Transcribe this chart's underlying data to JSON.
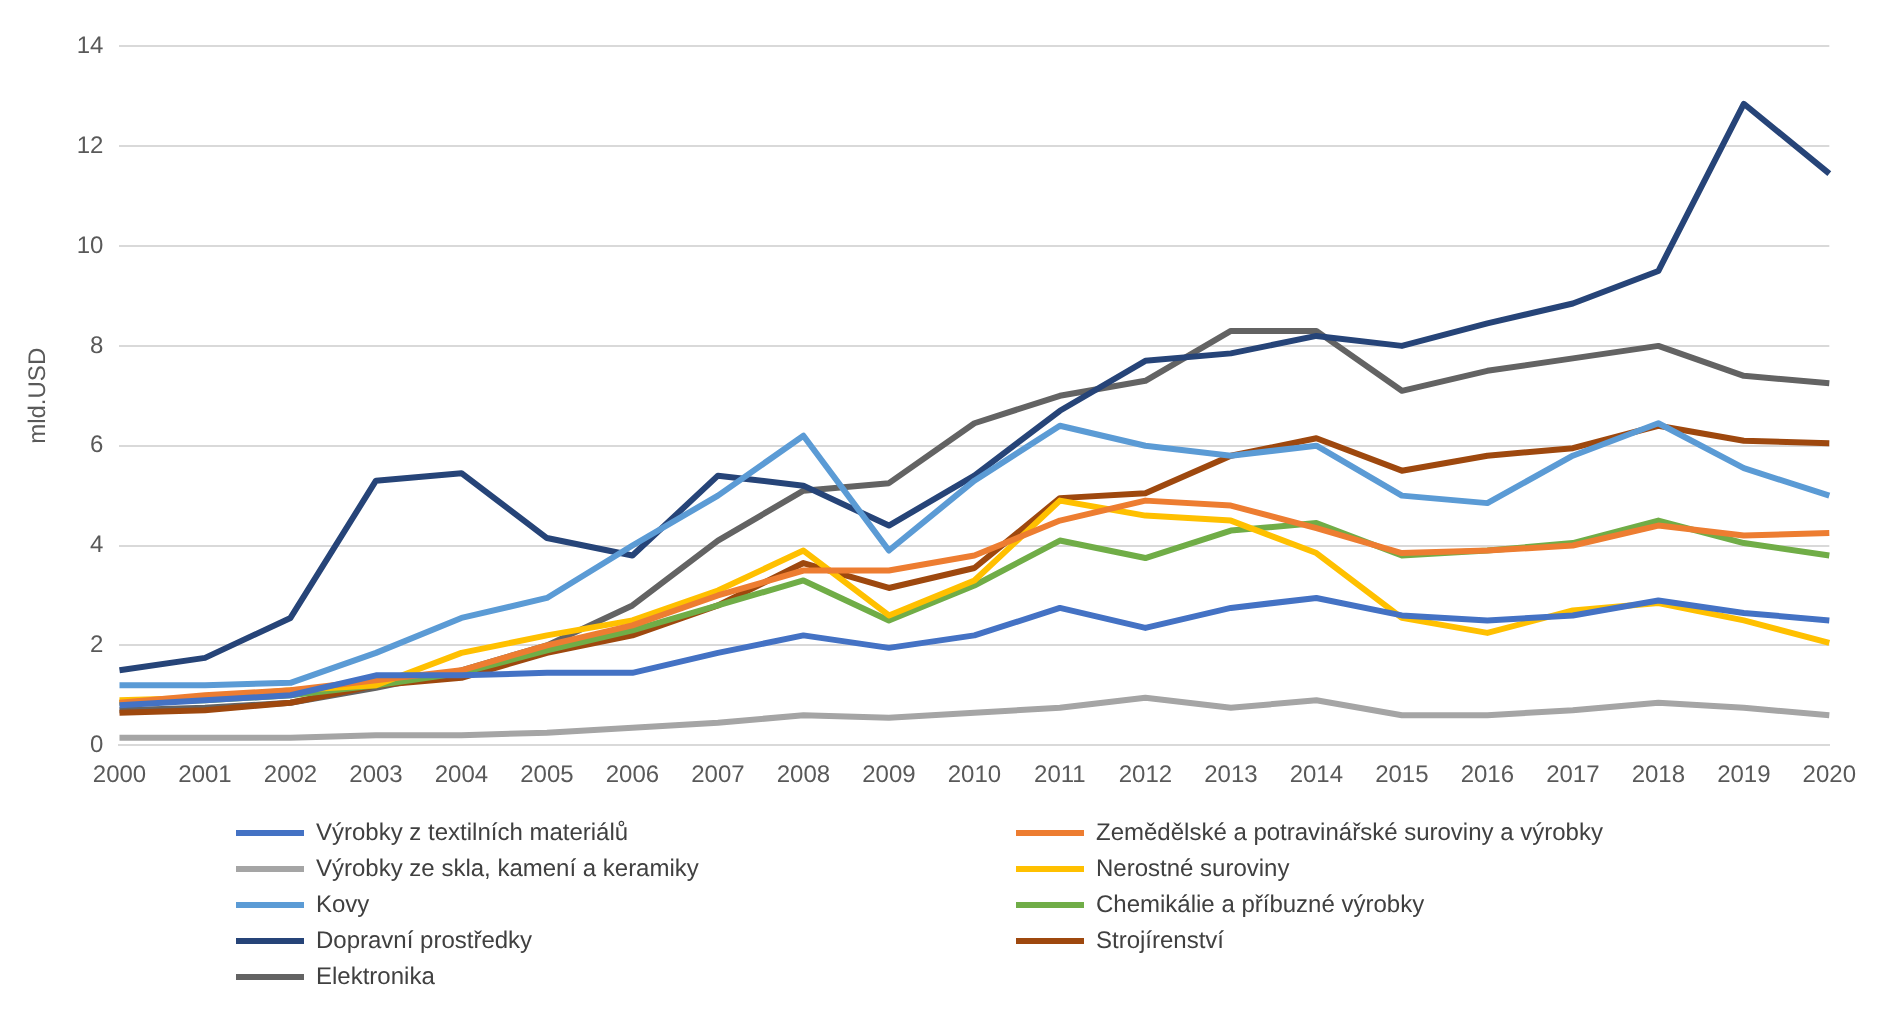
{
  "chart_data": {
    "type": "line",
    "ylabel": "mld.USD",
    "categories": [
      "2000",
      "2001",
      "2002",
      "2003",
      "2004",
      "2005",
      "2006",
      "2007",
      "2008",
      "2009",
      "2010",
      "2011",
      "2012",
      "2013",
      "2014",
      "2015",
      "2016",
      "2017",
      "2018",
      "2019",
      "2020"
    ],
    "ylim": [
      0,
      14
    ],
    "yticks": [
      0,
      2,
      4,
      6,
      8,
      10,
      12,
      14
    ],
    "grid": "y",
    "legend": "bottom",
    "marker": "none",
    "line_style": "solid",
    "series": [
      {
        "name": "Výrobky z textilních materiálů",
        "color": "#4472c4",
        "values": [
          0.8,
          0.9,
          1.0,
          1.4,
          1.4,
          1.45,
          1.45,
          1.85,
          2.2,
          1.95,
          2.2,
          2.75,
          2.35,
          2.75,
          2.95,
          2.6,
          2.5,
          2.6,
          2.9,
          2.65,
          2.5
        ]
      },
      {
        "name": "Zemědělské a potravinářské suroviny a výrobky",
        "color": "#ed7d31",
        "values": [
          0.85,
          1.0,
          1.1,
          1.3,
          1.5,
          2.0,
          2.4,
          3.0,
          3.5,
          3.5,
          3.8,
          4.5,
          4.9,
          4.8,
          4.35,
          3.85,
          3.9,
          4.0,
          4.4,
          4.2,
          4.25
        ]
      },
      {
        "name": "Výrobky ze skla, kamení a keramiky",
        "color": "#a5a5a5",
        "values": [
          0.15,
          0.15,
          0.15,
          0.2,
          0.2,
          0.25,
          0.35,
          0.45,
          0.6,
          0.55,
          0.65,
          0.75,
          0.95,
          0.75,
          0.9,
          0.6,
          0.6,
          0.7,
          0.85,
          0.75,
          0.6
        ]
      },
      {
        "name": "Nerostné suroviny",
        "color": "#ffc000",
        "values": [
          0.9,
          0.95,
          1.1,
          1.2,
          1.85,
          2.2,
          2.5,
          3.1,
          3.9,
          2.6,
          3.3,
          4.9,
          4.6,
          4.5,
          3.85,
          2.55,
          2.25,
          2.7,
          2.85,
          2.5,
          2.05
        ]
      },
      {
        "name": "Kovy",
        "color": "#5b9bd5",
        "values": [
          1.2,
          1.2,
          1.25,
          1.85,
          2.55,
          2.95,
          4.0,
          5.0,
          6.2,
          3.9,
          5.3,
          6.4,
          6.0,
          5.8,
          6.0,
          5.0,
          4.85,
          5.8,
          6.45,
          5.55,
          5.0
        ]
      },
      {
        "name": "Chemikálie a příbuzné výrobky",
        "color": "#70ad47",
        "values": [
          0.85,
          0.9,
          1.0,
          1.2,
          1.45,
          1.9,
          2.3,
          2.8,
          3.3,
          2.5,
          3.2,
          4.1,
          3.75,
          4.3,
          4.45,
          3.8,
          3.9,
          4.05,
          4.5,
          4.05,
          3.8
        ]
      },
      {
        "name": "Dopravní prostředky",
        "color": "#264478",
        "values": [
          1.5,
          1.75,
          2.55,
          5.3,
          5.45,
          4.15,
          3.8,
          5.4,
          5.2,
          4.4,
          5.4,
          6.7,
          7.7,
          7.85,
          8.2,
          8.0,
          8.45,
          8.85,
          9.5,
          12.85,
          11.45
        ]
      },
      {
        "name": "Strojírenství",
        "color": "#9e480e",
        "values": [
          0.65,
          0.7,
          0.85,
          1.2,
          1.35,
          1.85,
          2.2,
          2.8,
          3.65,
          3.15,
          3.55,
          4.95,
          5.05,
          5.8,
          6.15,
          5.5,
          5.8,
          5.95,
          6.4,
          6.1,
          6.05
        ]
      },
      {
        "name": "Elektronika",
        "color": "#636363",
        "values": [
          0.7,
          0.75,
          0.85,
          1.15,
          1.5,
          2.0,
          2.8,
          4.1,
          5.1,
          5.25,
          6.45,
          7.0,
          7.3,
          8.3,
          8.3,
          7.1,
          7.5,
          7.75,
          8.0,
          7.4,
          7.25
        ]
      }
    ]
  }
}
